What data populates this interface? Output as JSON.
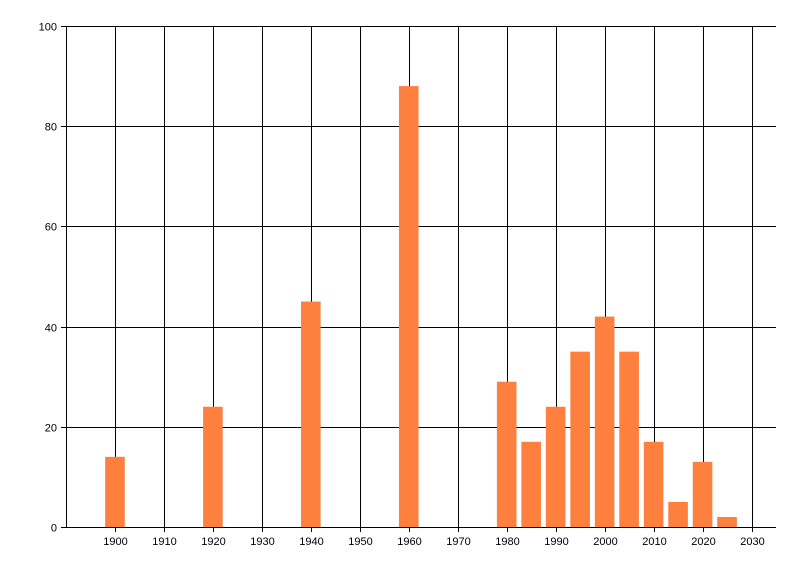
{
  "chart_data": {
    "type": "bar",
    "title": "",
    "xlabel": "",
    "ylabel": "",
    "x": [
      1900,
      1920,
      1940,
      1960,
      1980,
      1985,
      1990,
      1995,
      2000,
      2005,
      2010,
      2015,
      2020,
      2025
    ],
    "values": [
      14,
      24,
      45,
      88,
      29,
      17,
      24,
      35,
      42,
      35,
      17,
      5,
      13,
      2
    ],
    "xlim": [
      1890,
      2035
    ],
    "ylim": [
      0,
      100
    ],
    "xticks": [
      1900,
      1910,
      1920,
      1930,
      1940,
      1950,
      1960,
      1970,
      1980,
      1990,
      2000,
      2010,
      2020,
      2030
    ],
    "yticks": [
      0,
      20,
      40,
      60,
      80,
      100
    ],
    "bar_width": 4,
    "grid": true,
    "legend": "none",
    "colors": {
      "bar": "#FF7F3F",
      "grid": "#000000",
      "background": "#FFFFFF"
    }
  }
}
